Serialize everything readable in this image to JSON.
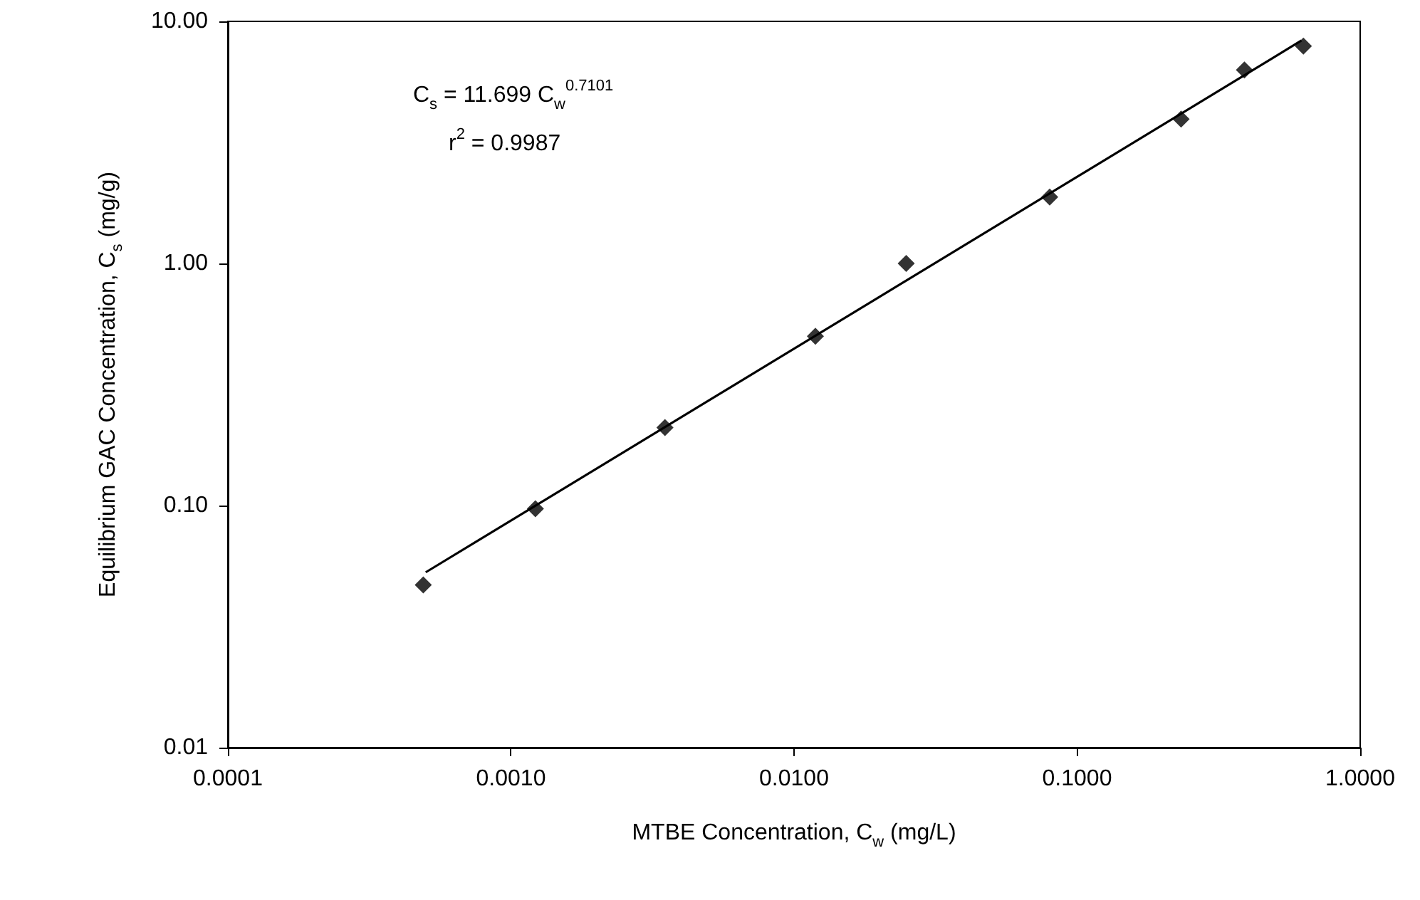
{
  "chart_data": {
    "type": "scatter",
    "xlabel": "MTBE Concentration, C$_{w}$ (mg/L)",
    "ylabel": "Equilibrium GAC Concentration, C$_{s}$ (mg/g)",
    "annotations": [
      "C$_{s}$ = 11.699 C$_{w}$$^{0.7101}$",
      "r$^{2}$ = 0.9987"
    ],
    "series": [
      {
        "color": "#000000",
        "marker": "diamond",
        "x": [
          0.00049,
          0.00122,
          0.0035,
          0.0119,
          0.0249,
          0.08,
          0.233,
          0.39,
          0.63
        ],
        "values": [
          0.047,
          0.097,
          0.21,
          0.5,
          1.0,
          1.88,
          3.95,
          6.3,
          7.9
        ]
      },
      {
        "type": "line",
        "color": "#000000",
        "marker": "none",
        "line_style": "solid",
        "x": [
          0.0005,
          0.02,
          0.62
        ],
        "values": [
          0.053,
          0.727,
          8.33
        ]
      }
    ],
    "log": "xy",
    "xlim": [
      0.0001,
      1
    ],
    "xticks": [
      {
        "value": 0.0001,
        "label": "0.0001"
      },
      {
        "value": 0.001,
        "label": "0.0010"
      },
      {
        "value": 0.01,
        "label": "0.0100"
      },
      {
        "value": 0.1,
        "label": "0.1000"
      },
      {
        "value": 1,
        "label": "1.0000"
      }
    ],
    "ylim": [
      0.01,
      10
    ],
    "yticks": [
      {
        "value": 0.01,
        "label": "0.01"
      },
      {
        "value": 0.1,
        "label": "0.10"
      },
      {
        "value": 1,
        "label": "1.00"
      },
      {
        "value": 10,
        "label": "10.00"
      }
    ],
    "grid": false
  }
}
